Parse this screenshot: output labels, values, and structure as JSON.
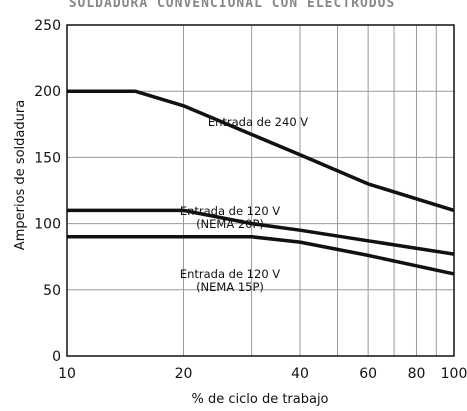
{
  "chart_data": {
    "type": "line",
    "title": "SOLDADURA CONVENCIONAL CON ELECTRODOS",
    "xlabel": "% de ciclo de trabajo",
    "ylabel": "Amperios de soldadura",
    "x_scale": "log",
    "xlim": [
      10,
      100
    ],
    "ylim": [
      0,
      250
    ],
    "x_ticks": [
      10,
      20,
      40,
      60,
      80,
      100
    ],
    "y_ticks": [
      0,
      50,
      100,
      150,
      200,
      250
    ],
    "y_grid_values": [
      0,
      50,
      100,
      150,
      200,
      250
    ],
    "x_grid_values": [
      20,
      30,
      40,
      50,
      60,
      70,
      80,
      90
    ],
    "grid": true,
    "series": [
      {
        "name": "Entrada de 240 V",
        "x": [
          10,
          15,
          20,
          40,
          60,
          100
        ],
        "y": [
          200,
          200,
          189,
          152,
          130,
          110
        ]
      },
      {
        "name": "Entrada de 120 V (NEMA 20P)",
        "x": [
          10,
          20,
          30,
          40,
          60,
          100
        ],
        "y": [
          110,
          110,
          100,
          95,
          87,
          77
        ]
      },
      {
        "name": "Entrada de 120 V (NEMA 15P)",
        "x": [
          10,
          20,
          30,
          40,
          60,
          100
        ],
        "y": [
          90,
          90,
          90,
          86,
          76,
          62
        ]
      }
    ],
    "annotations": [
      {
        "series": 0,
        "lines": [
          "Entrada de 240 V"
        ]
      },
      {
        "series": 1,
        "lines": [
          "Entrada de 120 V",
          "(NEMA 20P)"
        ]
      },
      {
        "series": 2,
        "lines": [
          "Entrada de 120 V",
          "(NEMA 15P)"
        ]
      }
    ]
  }
}
